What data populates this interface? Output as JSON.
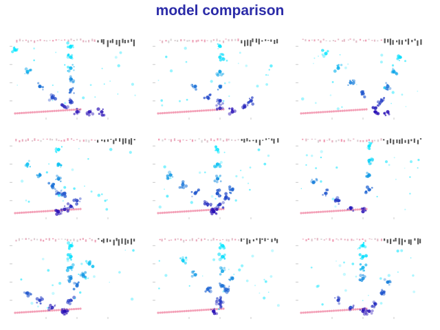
{
  "title": "model comparison",
  "colors": {
    "title": "#2b2ba8",
    "spread_low": "#00e5ff",
    "spread_high": "#2a00b0",
    "baseline": "#ee7799",
    "header_marks": "#222222"
  },
  "chart_data": [
    {
      "type": "scatter",
      "panel": 1,
      "series": [
        {
          "x": [
            0.0,
            0.1,
            0.2,
            0.3,
            0.4,
            0.5,
            0.6,
            0.7
          ],
          "y": [
            0.9,
            0.6,
            0.4,
            0.25,
            0.12,
            0.05,
            0.05,
            0.05
          ]
        },
        {
          "x": [
            0.45,
            0.45,
            0.45,
            0.45,
            0.45,
            0.45
          ],
          "y": [
            0.95,
            0.8,
            0.65,
            0.5,
            0.35,
            0.2
          ]
        }
      ]
    },
    {
      "type": "scatter",
      "panel": 2,
      "series": [
        {
          "x": [
            0.3,
            0.4,
            0.5,
            0.6,
            0.7,
            0.75
          ],
          "y": [
            0.4,
            0.25,
            0.1,
            0.05,
            0.12,
            0.2
          ]
        },
        {
          "x": [
            0.5,
            0.5,
            0.5,
            0.5,
            0.5
          ],
          "y": [
            0.95,
            0.8,
            0.6,
            0.4,
            0.2
          ]
        }
      ]
    },
    {
      "type": "scatter",
      "panel": 3,
      "series": [
        {
          "x": [
            0.2,
            0.3,
            0.4,
            0.5,
            0.6,
            0.7
          ],
          "y": [
            0.85,
            0.65,
            0.45,
            0.3,
            0.1,
            0.05
          ]
        },
        {
          "x": [
            0.6,
            0.65,
            0.7,
            0.75,
            0.8
          ],
          "y": [
            0.05,
            0.2,
            0.4,
            0.6,
            0.8
          ]
        }
      ]
    },
    {
      "type": "scatter",
      "panel": 4,
      "series": [
        {
          "x": [
            0.1,
            0.2,
            0.3,
            0.4
          ],
          "y": [
            0.7,
            0.55,
            0.4,
            0.3
          ]
        },
        {
          "x": [
            0.35,
            0.4,
            0.45,
            0.5
          ],
          "y": [
            0.05,
            0.08,
            0.12,
            0.2
          ]
        },
        {
          "x": [
            0.35,
            0.35,
            0.35,
            0.35
          ],
          "y": [
            0.9,
            0.7,
            0.5,
            0.3
          ]
        }
      ]
    },
    {
      "type": "scatter",
      "panel": 5,
      "series": [
        {
          "x": [
            0.1,
            0.2,
            0.3,
            0.4,
            0.45
          ],
          "y": [
            0.55,
            0.42,
            0.3,
            0.15,
            0.05
          ]
        },
        {
          "x": [
            0.45,
            0.5,
            0.55,
            0.6
          ],
          "y": [
            0.05,
            0.15,
            0.25,
            0.35
          ]
        },
        {
          "x": [
            0.48,
            0.48,
            0.48,
            0.48
          ],
          "y": [
            0.9,
            0.7,
            0.5,
            0.3
          ]
        }
      ]
    },
    {
      "type": "scatter",
      "panel": 6,
      "series": [
        {
          "x": [
            0.1,
            0.2,
            0.3,
            0.4,
            0.5
          ],
          "y": [
            0.45,
            0.3,
            0.2,
            0.1,
            0.05
          ]
        },
        {
          "x": [
            0.55,
            0.55,
            0.55,
            0.55
          ],
          "y": [
            0.95,
            0.75,
            0.55,
            0.35
          ]
        }
      ]
    },
    {
      "type": "scatter",
      "panel": 7,
      "series": [
        {
          "x": [
            0.1,
            0.2,
            0.3,
            0.4
          ],
          "y": [
            0.3,
            0.2,
            0.1,
            0.05
          ]
        },
        {
          "x": [
            0.4,
            0.45,
            0.5,
            0.55,
            0.6
          ],
          "y": [
            0.05,
            0.2,
            0.4,
            0.55,
            0.7
          ]
        },
        {
          "x": [
            0.45,
            0.45,
            0.45,
            0.45
          ],
          "y": [
            0.95,
            0.8,
            0.65,
            0.5
          ]
        }
      ]
    },
    {
      "type": "scatter",
      "panel": 8,
      "series": [
        {
          "x": [
            0.2,
            0.3,
            0.4,
            0.5
          ],
          "y": [
            0.75,
            0.55,
            0.35,
            0.15
          ]
        },
        {
          "x": [
            0.45,
            0.5,
            0.55,
            0.6
          ],
          "y": [
            0.05,
            0.2,
            0.35,
            0.5
          ]
        },
        {
          "x": [
            0.52,
            0.52,
            0.52,
            0.52
          ],
          "y": [
            0.95,
            0.8,
            0.6,
            0.4
          ]
        }
      ]
    },
    {
      "type": "scatter",
      "panel": 9,
      "series": [
        {
          "x": [
            0.3,
            0.4,
            0.5
          ],
          "y": [
            0.2,
            0.1,
            0.05
          ]
        },
        {
          "x": [
            0.55,
            0.6,
            0.65,
            0.7
          ],
          "y": [
            0.05,
            0.15,
            0.3,
            0.45
          ]
        },
        {
          "x": [
            0.5,
            0.5,
            0.5,
            0.5
          ],
          "y": [
            0.95,
            0.8,
            0.65,
            0.5
          ]
        }
      ]
    }
  ]
}
